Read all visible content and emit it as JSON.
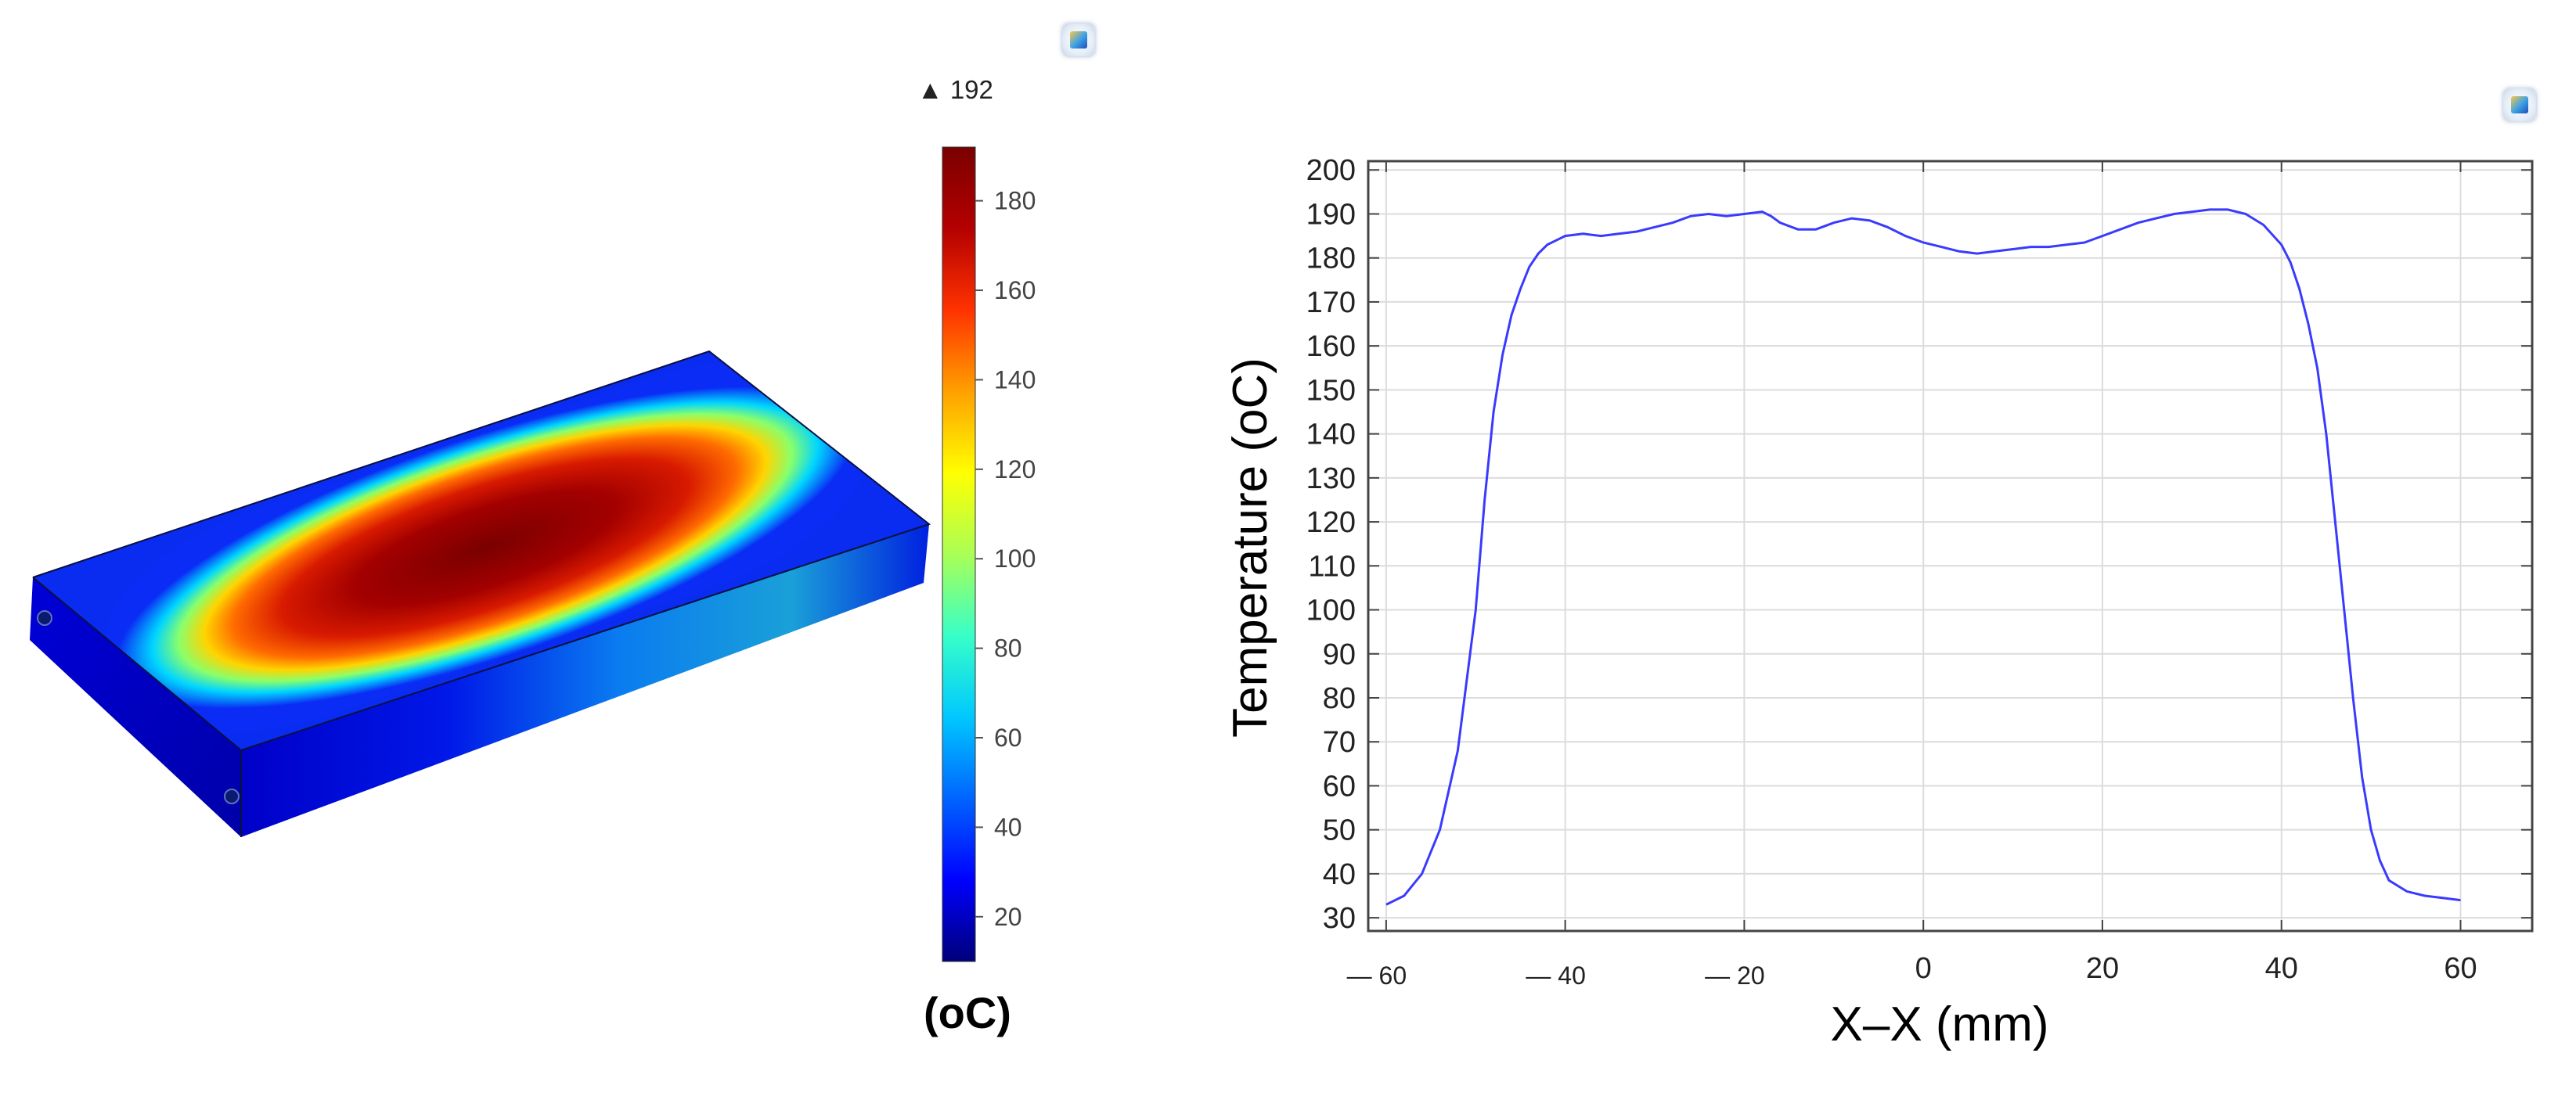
{
  "figure": {
    "left_panel": {
      "max_marker": "▲ 192",
      "colorbar": {
        "ticks": [
          "180",
          "160",
          "140",
          "120",
          "100",
          "80",
          "60",
          "40",
          "20"
        ],
        "tick_values": [
          180,
          160,
          140,
          120,
          100,
          80,
          60,
          40,
          20
        ],
        "range": [
          10,
          192
        ],
        "stops": [
          "#00007a",
          "#0000ff",
          "#0064ff",
          "#00c8ff",
          "#37ffc8",
          "#aaff55",
          "#ffff00",
          "#ffa000",
          "#ff3200",
          "#b40000",
          "#7a0000"
        ],
        "unit_label": "(oC)"
      },
      "icon": "model-settings-icon"
    },
    "right_panel": {
      "icon": "model-settings-icon"
    }
  },
  "chart_data": {
    "type": "line",
    "title": "",
    "xlabel": "X–X (mm)",
    "ylabel": "Temperature (oC)",
    "xlim": [
      -62,
      68
    ],
    "ylim": [
      27,
      202
    ],
    "x_ticks": [
      -60,
      -40,
      -20,
      0,
      20,
      40,
      60
    ],
    "x_tick_labels": [
      "— 60",
      "— 40",
      "— 20",
      "0",
      "20",
      "40",
      "60"
    ],
    "y_ticks": [
      30,
      40,
      50,
      60,
      70,
      80,
      90,
      100,
      110,
      120,
      130,
      140,
      150,
      160,
      170,
      180,
      190,
      200
    ],
    "grid": true,
    "series": [
      {
        "name": "Temperature",
        "color": "#3a3aff",
        "x": [
          -60,
          -58,
          -56,
          -54,
          -52,
          -50,
          -49,
          -48,
          -47,
          -46,
          -45,
          -44,
          -43,
          -42,
          -41,
          -40,
          -38,
          -36,
          -34,
          -32,
          -30,
          -28,
          -26,
          -24,
          -22,
          -20,
          -18,
          -17,
          -16,
          -14,
          -12,
          -10,
          -8,
          -6,
          -4,
          -2,
          0,
          2,
          4,
          6,
          8,
          10,
          12,
          14,
          16,
          18,
          20,
          22,
          24,
          26,
          28,
          30,
          32,
          34,
          36,
          38,
          40,
          41,
          42,
          43,
          44,
          45,
          46,
          47,
          48,
          49,
          50,
          51,
          52,
          54,
          56,
          58,
          60
        ],
        "y": [
          33,
          35,
          40,
          50,
          68,
          100,
          125,
          145,
          158,
          167,
          173,
          178,
          181,
          183,
          184,
          185,
          185.5,
          185,
          185.5,
          186,
          187,
          188,
          189.5,
          190,
          189.5,
          190,
          190.5,
          189.5,
          188,
          186.5,
          186.5,
          188,
          189,
          188.5,
          187,
          185,
          183.5,
          182.5,
          181.5,
          181,
          181.5,
          182,
          182.5,
          182.5,
          183,
          183.5,
          185,
          186.5,
          188,
          189,
          190,
          190.5,
          191,
          191,
          190,
          187.5,
          183,
          179,
          173,
          165,
          155,
          140,
          120,
          100,
          80,
          62,
          50,
          43,
          38.5,
          36,
          35,
          34.5,
          34
        ]
      }
    ]
  }
}
